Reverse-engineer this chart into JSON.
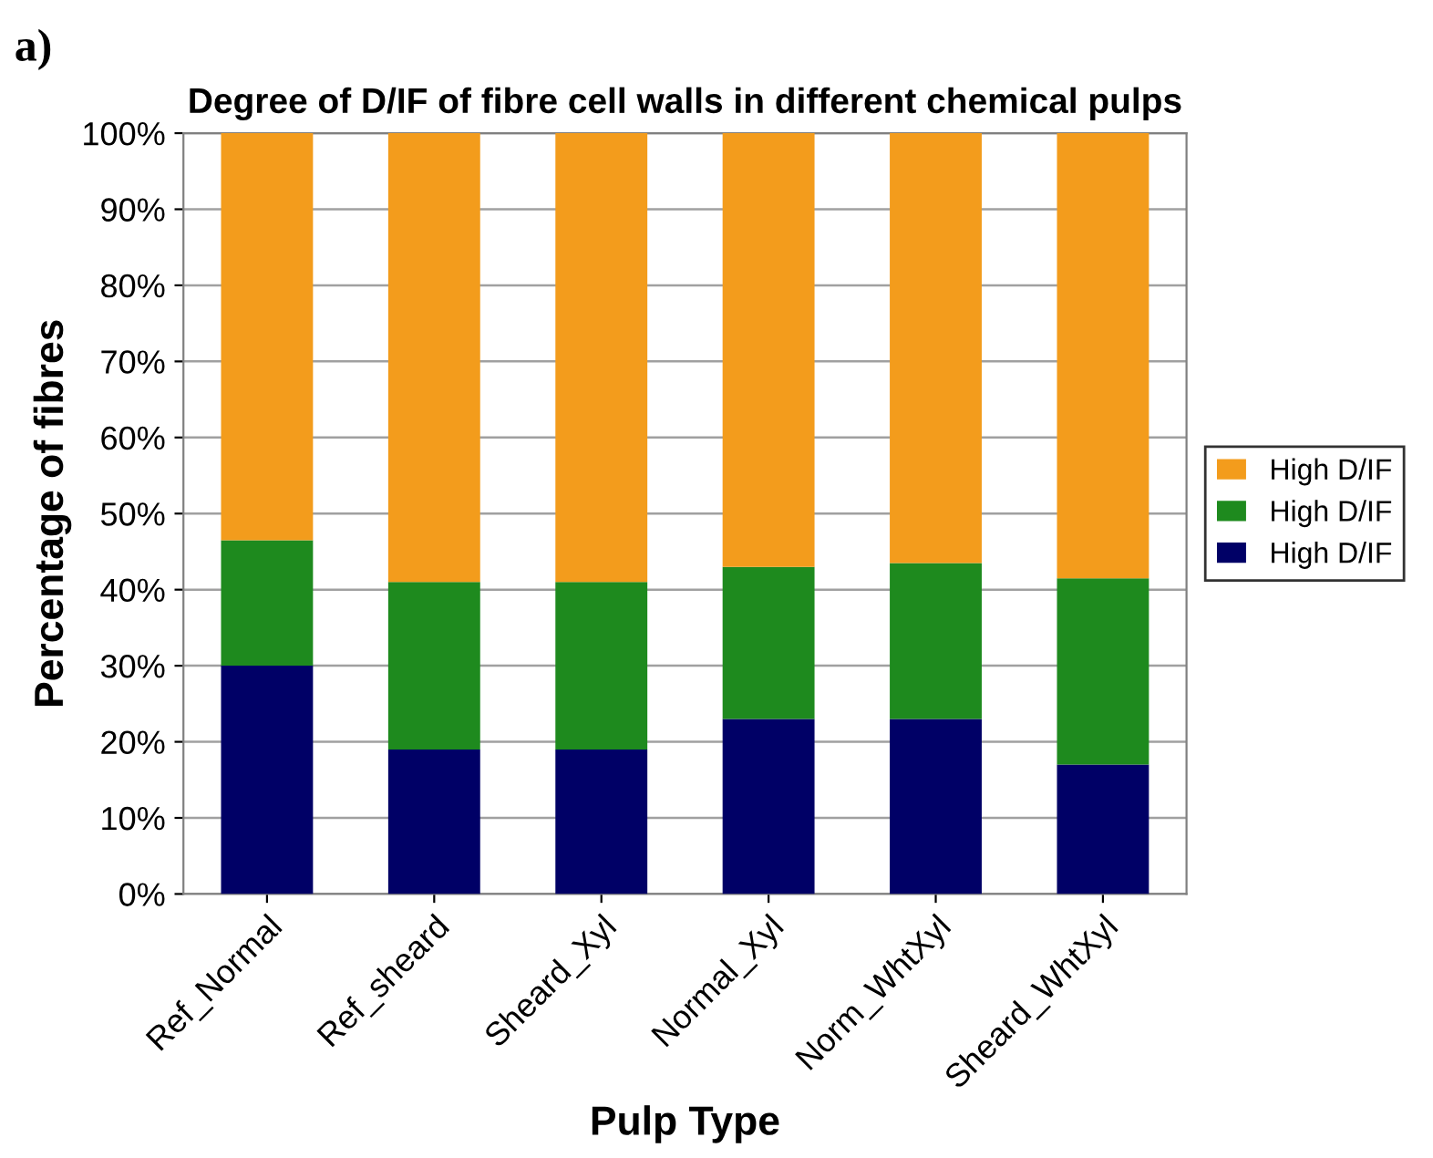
{
  "chart_data": {
    "type": "bar",
    "stacked": true,
    "title": "Degree of D/IF of fibre cell walls in different chemical pulps",
    "xlabel": "Pulp Type",
    "ylabel": "Percentage of fibres",
    "annotations": [
      "a)"
    ],
    "categories": [
      "Ref_Normal",
      "Ref_sheard",
      "Sheard_Xyl",
      "Normal_Xyl",
      "Norm_WhtXyl",
      "Sheard_WhtXyl"
    ],
    "series": [
      {
        "name": "High D/IF",
        "color": "#000066",
        "values": [
          30,
          19,
          19,
          23,
          23,
          17
        ]
      },
      {
        "name": "High D/IF",
        "color": "#1e8a1e",
        "values": [
          16.5,
          22,
          22,
          20,
          20.5,
          24.5
        ]
      },
      {
        "name": "High D/IF",
        "color": "#f39c1c",
        "values": [
          53.5,
          59,
          59,
          57,
          56.5,
          58.5
        ]
      }
    ],
    "ylim": [
      0,
      100
    ],
    "yticks": [
      {
        "value": 0,
        "label": "0%"
      },
      {
        "value": 10,
        "label": "10%"
      },
      {
        "value": 20,
        "label": "20%"
      },
      {
        "value": 30,
        "label": "30%"
      },
      {
        "value": 40,
        "label": "40%"
      },
      {
        "value": 50,
        "label": "50%"
      },
      {
        "value": 60,
        "label": "60%"
      },
      {
        "value": 70,
        "label": "70%"
      },
      {
        "value": 80,
        "label": "80%"
      },
      {
        "value": 90,
        "label": "90%"
      },
      {
        "value": 100,
        "label": "100%"
      }
    ],
    "grid": "y",
    "legend": "right"
  }
}
